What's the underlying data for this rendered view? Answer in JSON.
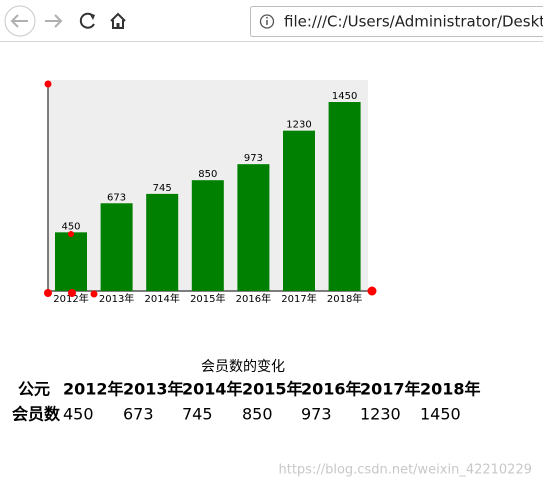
{
  "browser": {
    "url": "file:///C:/Users/Administrator/Desktop/"
  },
  "chart_data": {
    "type": "bar",
    "categories": [
      "2012年",
      "2013年",
      "2014年",
      "2015年",
      "2016年",
      "2017年",
      "2018年"
    ],
    "values": [
      450,
      673,
      745,
      850,
      973,
      1230,
      1450
    ],
    "color": "#008000"
  },
  "table": {
    "caption": "会员数的变化",
    "header": [
      "公元",
      "2012年",
      "2013年",
      "2014年",
      "2015年",
      "2016年",
      "2017年",
      "2018年"
    ],
    "rows": [
      [
        "会员数",
        "450",
        "673",
        "745",
        "850",
        "973",
        "1230",
        "1450"
      ]
    ]
  },
  "watermark": "https://blog.csdn.net/weixin_42210229"
}
